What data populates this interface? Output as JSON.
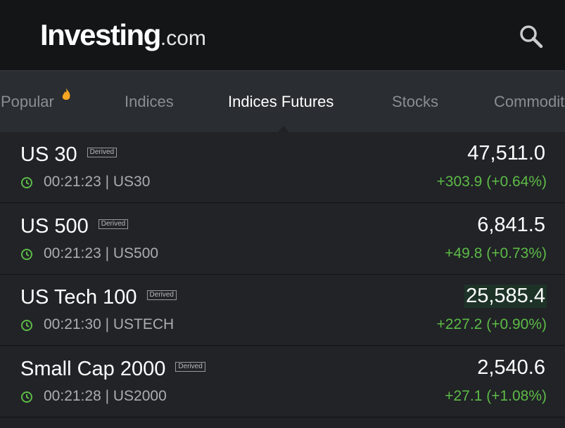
{
  "header": {
    "logo": {
      "name": "Investing",
      "suffix": ".com"
    }
  },
  "tabs": [
    "Popular",
    "Indices",
    "Indices Futures",
    "Stocks",
    "Commodities"
  ],
  "active_tab": 2,
  "rows": [
    {
      "name": "US 30",
      "badge": "Derived",
      "time": "00:21:23 | US30",
      "price": "47,511.0",
      "change": "+303.9 (+0.64%)"
    },
    {
      "name": "US 500",
      "badge": "Derived",
      "time": "00:21:23 | US500",
      "price": "6,841.5",
      "change": "+49.8 (+0.73%)"
    },
    {
      "name": "US Tech 100",
      "badge": "Derived",
      "time": "00:21:30 | USTECH",
      "price": "25,585.4",
      "change": "+227.2 (+0.90%)"
    },
    {
      "name": "Small Cap 2000",
      "badge": "Derived",
      "time": "00:21:28 | US2000",
      "price": "2,540.6",
      "change": "+27.1 (+1.08%)"
    }
  ]
}
